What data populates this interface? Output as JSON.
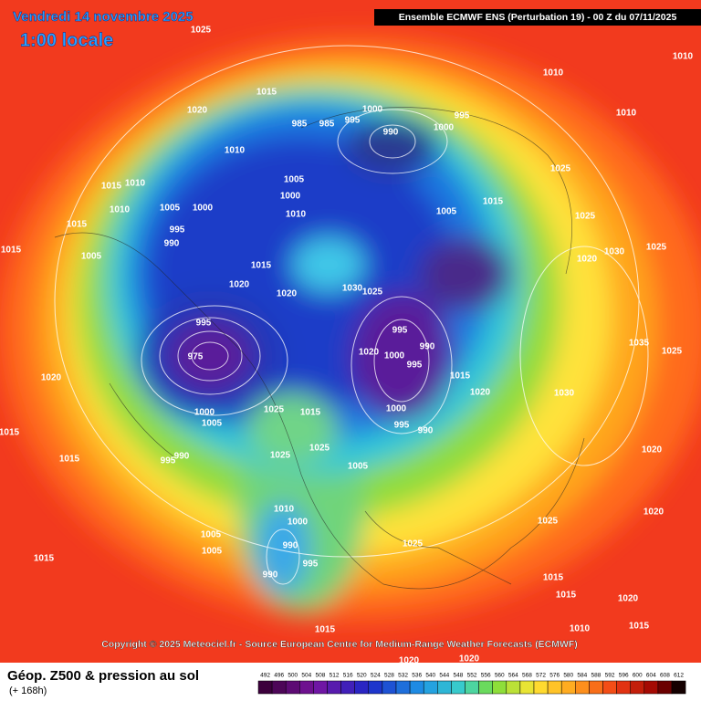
{
  "header": {
    "date": "Vendredi 14 novembre 2025",
    "time": "1:00 locale",
    "run": "Ensemble ECMWF ENS  (Perturbation 19)  -  00 Z du 07/11/2025"
  },
  "map": {
    "isobar_labels": [
      1025,
      1015,
      1020,
      1010,
      985,
      985,
      995,
      1000,
      990,
      995,
      1000,
      1010,
      1010,
      1010,
      1015,
      1010,
      1015,
      1010,
      1015,
      1005,
      990,
      995,
      1000,
      1005,
      1005,
      1000,
      1010,
      1015,
      1020,
      1020,
      1030,
      1025,
      1005,
      1015,
      1025,
      1025,
      1020,
      1030,
      1025,
      995,
      975,
      1000,
      1005,
      995,
      990,
      1020,
      1015,
      1015,
      1020,
      995,
      1000,
      995,
      990,
      1015,
      1020,
      1000,
      995,
      990,
      1005,
      1025,
      1015,
      1025,
      1025,
      1010,
      1000,
      990,
      995,
      990,
      1005,
      1005,
      1015,
      1025,
      1025,
      1015,
      1015,
      1020,
      1015,
      1010,
      1015,
      1020,
      1020,
      1020,
      1020,
      1030,
      1035,
      1025
    ]
  },
  "copyright": "Copyright © 2025 Meteociel.fr - Source European Centre for Medium-Range Weather Forecasts (ECMWF)",
  "footer": {
    "title": "Géop. Z500 & pression au sol",
    "lead": "(+ 168h)",
    "scale": [
      492,
      496,
      500,
      504,
      508,
      512,
      516,
      520,
      524,
      528,
      532,
      536,
      540,
      544,
      548,
      552,
      556,
      560,
      564,
      568,
      572,
      576,
      580,
      584,
      588,
      592,
      596,
      600,
      604,
      608,
      612
    ]
  }
}
